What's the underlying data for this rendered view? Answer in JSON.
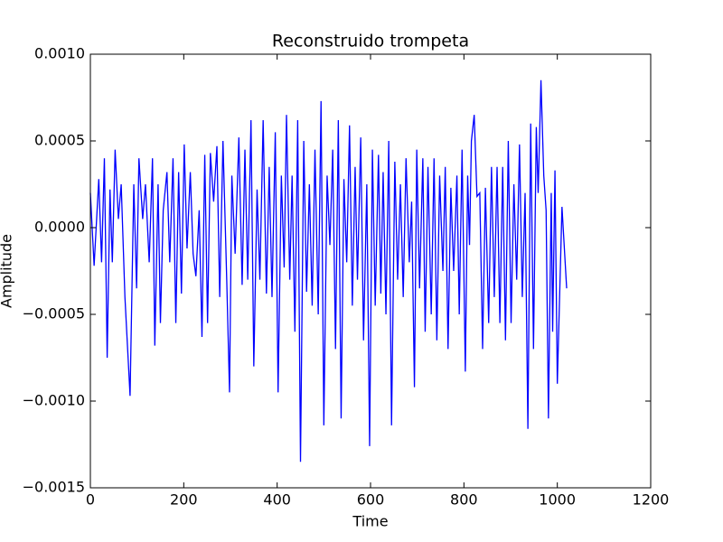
{
  "chart_data": {
    "type": "line",
    "title": "Reconstruido trompeta",
    "xlabel": "Time",
    "ylabel": "Amplitude",
    "color": "#0000ff",
    "xlim": [
      0,
      1200
    ],
    "xticks": [
      0,
      200,
      400,
      600,
      800,
      1000,
      1200
    ],
    "ylim": [
      -0.0015,
      0.001
    ],
    "yticks": [
      {
        "value": -0.0015,
        "label": "−0.0015"
      },
      {
        "value": -0.001,
        "label": "−0.0010"
      },
      {
        "value": -0.0005,
        "label": "−0.0005"
      },
      {
        "value": 0,
        "label": "0.0000"
      },
      {
        "value": 0.0005,
        "label": "0.0005"
      },
      {
        "value": 0.001,
        "label": "0.0010"
      }
    ],
    "x": [
      0,
      8,
      18,
      24,
      30,
      36,
      42,
      47,
      53,
      60,
      66,
      74,
      85,
      93,
      99,
      104,
      112,
      118,
      126,
      133,
      138,
      145,
      150,
      156,
      164,
      170,
      177,
      183,
      189,
      195,
      201,
      207,
      214,
      220,
      226,
      233,
      239,
      245,
      251,
      257,
      264,
      271,
      277,
      284,
      292,
      298,
      303,
      310,
      318,
      325,
      331,
      337,
      344,
      350,
      357,
      363,
      370,
      377,
      383,
      389,
      396,
      402,
      409,
      415,
      420,
      427,
      432,
      438,
      444,
      450,
      457,
      463,
      469,
      475,
      481,
      488,
      494,
      500,
      507,
      513,
      519,
      525,
      531,
      537,
      543,
      549,
      555,
      561,
      567,
      572,
      579,
      585,
      592,
      598,
      604,
      610,
      617,
      622,
      627,
      633,
      639,
      645,
      652,
      658,
      664,
      670,
      676,
      683,
      688,
      694,
      699,
      705,
      712,
      717,
      723,
      730,
      736,
      742,
      748,
      755,
      760,
      766,
      772,
      778,
      785,
      790,
      796,
      803,
      808,
      812,
      816,
      822,
      828,
      834,
      840,
      846,
      853,
      859,
      865,
      871,
      877,
      883,
      889,
      895,
      901,
      907,
      913,
      919,
      925,
      931,
      937,
      943,
      949,
      955,
      959,
      965,
      971,
      976,
      981,
      987,
      990,
      995,
      1000,
      1010,
      1020
    ],
    "values": [
      0.0002,
      -0.00022,
      0.00028,
      -0.0002,
      0.0004,
      -0.00075,
      0.00022,
      -0.0002,
      0.00045,
      5e-05,
      0.00025,
      -0.0004,
      -0.00097,
      0.00025,
      -0.00035,
      0.0004,
      5e-05,
      0.00025,
      -0.0002,
      0.0004,
      -0.00068,
      0.00025,
      -0.00055,
      0.0001,
      0.00032,
      -0.0002,
      0.0004,
      -0.00055,
      0.00032,
      -0.00038,
      0.00048,
      -0.00012,
      0.00032,
      -0.00015,
      -0.00028,
      0.0001,
      -0.00063,
      0.00042,
      -0.00055,
      0.00043,
      0.00015,
      0.00047,
      -0.0004,
      0.0005,
      -0.0003,
      -0.00095,
      0.0003,
      -0.00015,
      0.00052,
      -0.00033,
      0.00045,
      -0.0003,
      0.00062,
      -0.0008,
      0.00022,
      -0.0003,
      0.00062,
      -0.00038,
      0.00035,
      -0.0004,
      0.00055,
      -0.00095,
      0.0003,
      -0.00023,
      0.00065,
      -0.0003,
      0.0003,
      -0.0006,
      0.00062,
      -0.00135,
      0.0005,
      -0.00037,
      0.00025,
      -0.00045,
      0.00045,
      -0.0005,
      0.00073,
      -0.00114,
      0.0003,
      -0.0001,
      0.00045,
      -0.0007,
      0.00062,
      -0.0011,
      0.00028,
      -0.0002,
      0.00059,
      -0.00045,
      0.00035,
      -0.0003,
      0.00052,
      -0.00065,
      0.00025,
      -0.00126,
      0.00045,
      -0.00045,
      0.00042,
      -0.00038,
      0.00032,
      -0.0005,
      0.0005,
      -0.00114,
      0.00038,
      -0.0003,
      0.00025,
      -0.0004,
      0.0004,
      -0.0002,
      0.00015,
      -0.00092,
      0.00045,
      -0.00035,
      0.0004,
      -0.0006,
      0.00035,
      -0.0005,
      0.0004,
      -0.00065,
      0.0003,
      -0.00025,
      0.00035,
      -0.0007,
      0.00023,
      -0.00025,
      0.0003,
      -0.0005,
      0.00045,
      -0.00083,
      0.0003,
      -0.0001,
      0.0005,
      0.00065,
      0.00018,
      0.0002,
      -0.0007,
      0.00023,
      -0.00055,
      0.00035,
      -0.0004,
      0.00035,
      -0.00055,
      0.00035,
      -0.00065,
      0.0005,
      -0.00055,
      0.00025,
      -0.0003,
      0.00048,
      -0.0004,
      0.0002,
      -0.00116,
      0.0006,
      -0.0007,
      0.00058,
      0.0002,
      0.00085,
      0.0003,
      0.0001,
      -0.0011,
      0.0002,
      -0.0006,
      0.00033,
      -0.0009,
      0.00012,
      -0.00035
    ]
  }
}
